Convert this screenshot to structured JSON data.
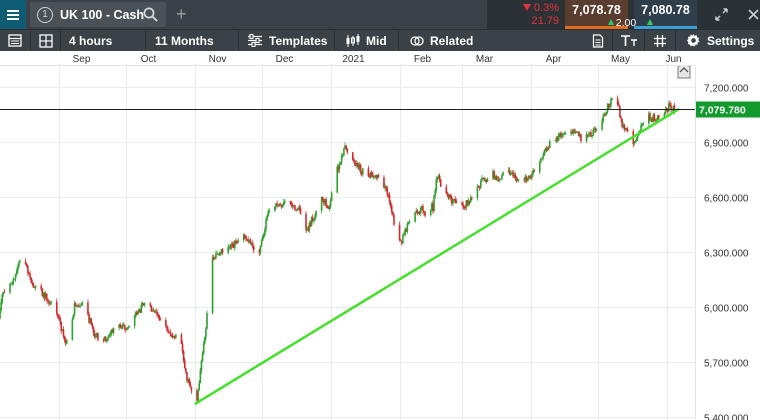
{
  "instrument": {
    "number": "1",
    "name": "UK 100 - Cash",
    "change_pct": "0.3%",
    "change_abs": "21.79",
    "sell_price": "7,078.78",
    "buy_price": "7,080.78",
    "spread": "2.00"
  },
  "toolbar": {
    "interval": "4 hours",
    "range": "11 Months",
    "templates_label": "Templates",
    "price_type_label": "Mid",
    "related_label": "Related",
    "settings_label": "Settings"
  },
  "colors": {
    "up_candle": "#2ca02c",
    "down_candle": "#d62728",
    "trendline": "#44e02b",
    "current_price_badge": "#139a2f"
  },
  "chart_data": {
    "type": "candlestick",
    "x_axis_labels": [
      "Sep",
      "Oct",
      "Nov",
      "Dec",
      "2021",
      "Feb",
      "Mar",
      "Apr",
      "May",
      "Jun"
    ],
    "y_axis_labels": [
      "7,200.000",
      "6,900.000",
      "6,600.000",
      "6,300.000",
      "6,000.000",
      "5,700.000",
      "5,400.000"
    ],
    "y_axis_values": [
      7200,
      6900,
      6600,
      6300,
      6000,
      5700,
      5400
    ],
    "ylim": [
      5383,
      7310
    ],
    "current_price": 7079.78,
    "current_price_label": "7,079.780",
    "grid": true,
    "trendline": {
      "from": {
        "date": "2020-11-01",
        "value": 5470
      },
      "to": {
        "date": "2021-06-04",
        "value": 7060
      }
    },
    "price_path": [
      [
        "2020-08-04",
        5880
      ],
      [
        "2020-08-07",
        6080
      ],
      [
        "2020-08-12",
        6150
      ],
      [
        "2020-08-15",
        6290
      ],
      [
        "2020-08-20",
        6120
      ],
      [
        "2020-08-26",
        6060
      ],
      [
        "2020-09-01",
        5940
      ],
      [
        "2020-09-04",
        5800
      ],
      [
        "2020-09-08",
        6000
      ],
      [
        "2020-09-12",
        6030
      ],
      [
        "2020-09-17",
        5850
      ],
      [
        "2020-09-22",
        5820
      ],
      [
        "2020-09-27",
        5900
      ],
      [
        "2020-10-01",
        5880
      ],
      [
        "2020-10-06",
        5970
      ],
      [
        "2020-10-10",
        6020
      ],
      [
        "2020-10-14",
        5990
      ],
      [
        "2020-10-19",
        5880
      ],
      [
        "2020-10-23",
        5830
      ],
      [
        "2020-10-26",
        5790
      ],
      [
        "2020-10-28",
        5620
      ],
      [
        "2020-10-31",
        5530
      ],
      [
        "2020-11-02",
        5500
      ],
      [
        "2020-11-04",
        5700
      ],
      [
        "2020-11-06",
        5900
      ],
      [
        "2020-11-08",
        6220
      ],
      [
        "2020-11-11",
        6290
      ],
      [
        "2020-11-17",
        6320
      ],
      [
        "2020-11-23",
        6380
      ],
      [
        "2020-11-27",
        6340
      ],
      [
        "2020-11-30",
        6300
      ],
      [
        "2020-12-04",
        6520
      ],
      [
        "2020-12-08",
        6550
      ],
      [
        "2020-12-13",
        6570
      ],
      [
        "2020-12-18",
        6530
      ],
      [
        "2020-12-21",
        6400
      ],
      [
        "2020-12-24",
        6480
      ],
      [
        "2020-12-28",
        6600
      ],
      [
        "2020-12-31",
        6540
      ],
      [
        "2021-01-02",
        6620
      ],
      [
        "2021-01-04",
        6750
      ],
      [
        "2021-01-07",
        6870
      ],
      [
        "2021-01-11",
        6800
      ],
      [
        "2021-01-15",
        6750
      ],
      [
        "2021-01-20",
        6720
      ],
      [
        "2021-01-24",
        6700
      ],
      [
        "2021-01-28",
        6560
      ],
      [
        "2021-01-30",
        6420
      ],
      [
        "2021-02-02",
        6350
      ],
      [
        "2021-02-06",
        6500
      ],
      [
        "2021-02-10",
        6530
      ],
      [
        "2021-02-14",
        6520
      ],
      [
        "2021-02-16",
        6550
      ],
      [
        "2021-02-18",
        6720
      ],
      [
        "2021-02-21",
        6640
      ],
      [
        "2021-02-25",
        6580
      ],
      [
        "2021-03-02",
        6550
      ],
      [
        "2021-03-06",
        6620
      ],
      [
        "2021-03-10",
        6680
      ],
      [
        "2021-03-14",
        6720
      ],
      [
        "2021-03-18",
        6700
      ],
      [
        "2021-03-22",
        6740
      ],
      [
        "2021-03-27",
        6680
      ],
      [
        "2021-03-31",
        6700
      ],
      [
        "2021-04-05",
        6800
      ],
      [
        "2021-04-10",
        6900
      ],
      [
        "2021-04-15",
        6950
      ],
      [
        "2021-04-20",
        6960
      ],
      [
        "2021-04-24",
        6920
      ],
      [
        "2021-04-28",
        6950
      ],
      [
        "2021-05-02",
        7000
      ],
      [
        "2021-05-05",
        7080
      ],
      [
        "2021-05-08",
        7140
      ],
      [
        "2021-05-10",
        7110
      ],
      [
        "2021-05-12",
        7000
      ],
      [
        "2021-05-14",
        6950
      ],
      [
        "2021-05-17",
        6880
      ],
      [
        "2021-05-19",
        6940
      ],
      [
        "2021-05-21",
        7000
      ],
      [
        "2021-05-24",
        7040
      ],
      [
        "2021-05-27",
        7020
      ],
      [
        "2021-05-30",
        7050
      ],
      [
        "2021-06-02",
        7090
      ],
      [
        "2021-06-04",
        7079
      ]
    ]
  }
}
